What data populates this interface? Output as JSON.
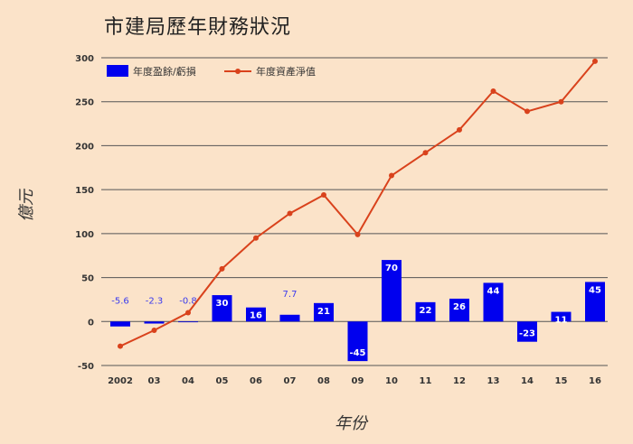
{
  "chart_data": {
    "type": "bar",
    "title": "市建局歷年財務狀況",
    "xlabel": "年份",
    "ylabel": "億元",
    "categories": [
      "2002",
      "03",
      "04",
      "05",
      "06",
      "07",
      "08",
      "09",
      "10",
      "11",
      "12",
      "13",
      "14",
      "15",
      "16"
    ],
    "ylim": [
      -50,
      300
    ],
    "yticks": [
      -50,
      0,
      50,
      100,
      150,
      200,
      250,
      300
    ],
    "grid": true,
    "legend_position": "top-left",
    "series": [
      {
        "name": "年度盈餘/虧損",
        "type": "bar",
        "color": "#0000ee",
        "values": [
          -5.6,
          -2.3,
          -0.8,
          30,
          16,
          7.7,
          21,
          -45,
          70,
          22,
          26,
          44,
          -23,
          11,
          45
        ],
        "labels": [
          "-5.6",
          "-2.3",
          "-0.8",
          "30",
          "16",
          "7.7",
          "21",
          "-45",
          "70",
          "22",
          "26",
          "44",
          "-23",
          "11",
          "45"
        ]
      },
      {
        "name": "年度資產淨值",
        "type": "line",
        "color": "#d9421c",
        "values": [
          -28,
          -10,
          10,
          60,
          95,
          123,
          144,
          99,
          166,
          192,
          218,
          262,
          239,
          250,
          296
        ]
      }
    ]
  }
}
